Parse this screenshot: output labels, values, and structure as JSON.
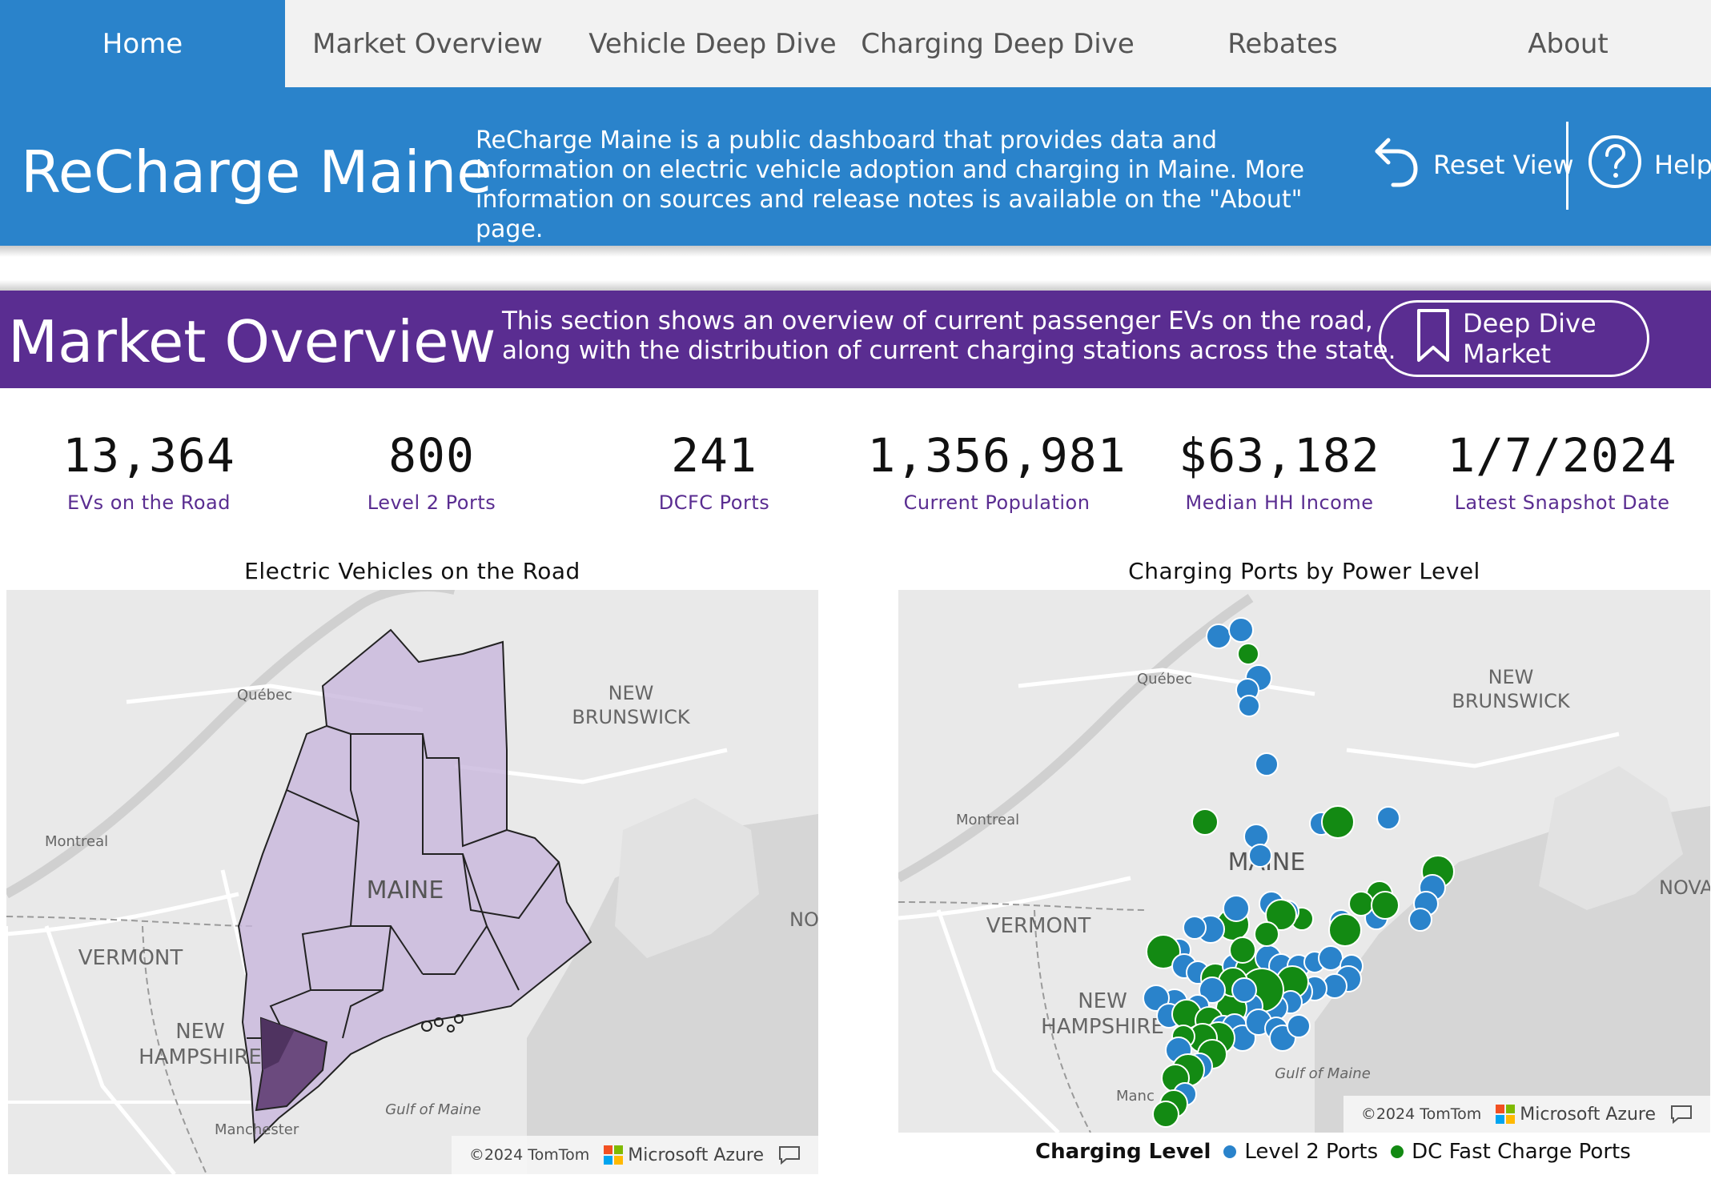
{
  "nav": {
    "tabs": [
      {
        "label": "Home",
        "active": true
      },
      {
        "label": "Market Overview"
      },
      {
        "label": "Vehicle Deep Dive"
      },
      {
        "label": "Charging Deep Dive"
      },
      {
        "label": "Rebates"
      },
      {
        "label": "About"
      }
    ]
  },
  "header": {
    "title": "ReCharge Maine",
    "description": "ReCharge Maine is a public dashboard that provides data and information on electric vehicle adoption and charging in Maine. More information on sources and release notes is available on the \"About\" page.",
    "reset_label": "Reset View",
    "help_label": "Help"
  },
  "section": {
    "title": "Market Overview",
    "description_line1": "This section shows an overview of current passenger EVs on the road,",
    "description_line2": "along with the distribution of current charging stations across the state.",
    "deep_dive_label": "Deep Dive Market"
  },
  "kpis": [
    {
      "value": "13,364",
      "label": "EVs on the Road"
    },
    {
      "value": "800",
      "label": "Level 2 Ports"
    },
    {
      "value": "241",
      "label": "DCFC Ports"
    },
    {
      "value": "1,356,981",
      "label": "Current Population"
    },
    {
      "value": "$63,182",
      "label": "Median HH Income"
    },
    {
      "value": "1/7/2024",
      "label": "Latest Snapshot Date"
    }
  ],
  "map_left": {
    "title": "Electric Vehicles on the Road",
    "labels": {
      "quebec": "Québec",
      "montreal": "Montreal",
      "new": "NEW",
      "brunswick": "BRUNSWICK",
      "maine": "MAINE",
      "vermont": "VERMONT",
      "new2": "NEW",
      "hampshire": "HAMPSHIRE",
      "manchester": "Manchester",
      "gulf": "Gulf of Maine",
      "no": "NO"
    },
    "attribution_tomtom": "©2024 TomTom",
    "attribution_azure": "Microsoft Azure"
  },
  "map_right": {
    "title": "Charging Ports by Power Level",
    "labels": {
      "quebec": "Québec",
      "montreal": "Montreal",
      "new": "NEW",
      "brunswick": "BRUNSWICK",
      "maine": "MAINE",
      "vermont": "VERMONT",
      "new2": "NEW",
      "hampshire": "HAMPSHIRE",
      "manc": "Manc",
      "gulf": "Gulf of Maine",
      "nova": "NOVA"
    },
    "attribution_tomtom": "©2024 TomTom",
    "attribution_azure": "Microsoft Azure"
  },
  "legend": {
    "title": "Charging Level",
    "level2": "Level 2 Ports",
    "dcfc": "DC Fast Charge Ports"
  },
  "colors": {
    "nav_active": "#2a83cb",
    "header_bg": "#2a83cb",
    "section_bg": "#5a2d91",
    "kpi_label": "#5a2d91",
    "level2_dot": "#2a83cb",
    "dcfc_dot": "#138a13",
    "county_fill": "#c8b6dc",
    "county_dark": "#6b4a7e"
  },
  "icons": {
    "reset": "undo-arrow-icon",
    "help": "question-circle-icon",
    "bookmark": "bookmark-icon",
    "feedback": "comment-icon"
  }
}
